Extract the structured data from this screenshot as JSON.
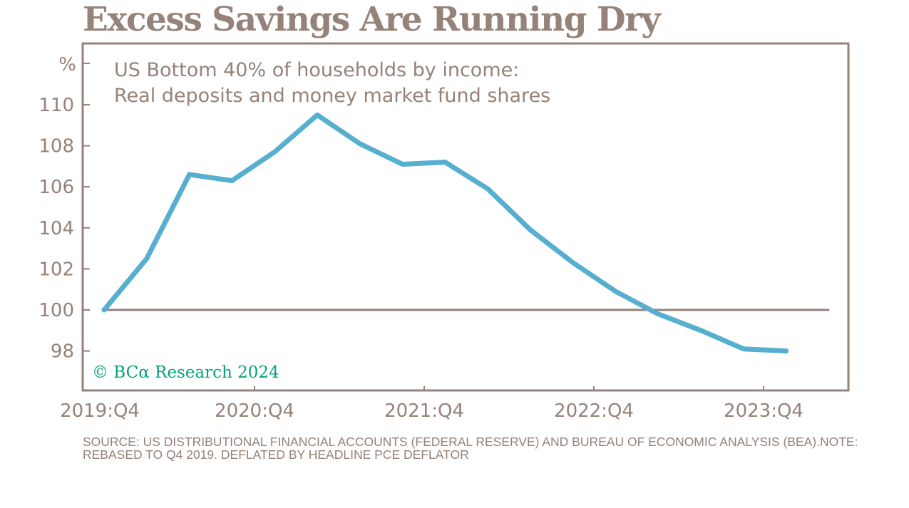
{
  "title": "Excess Savings Are Running Dry",
  "source": "SOURCE: US DISTRIBUTIONAL FINANCIAL ACCOUNTS (FEDERAL RESERVE) AND BUREAU OF ECONOMIC ANALYSIS (BEA).NOTE: REBASED TO Q4 2019. DEFLATED BY HEADLINE PCE DEFLATOR",
  "copyright": "© BCα Research 2024",
  "chart_data": {
    "type": "line",
    "subtitle_lines": [
      "US Bottom 40% of households by income:",
      "Real deposits and money market fund shares"
    ],
    "ylabel": "%",
    "ylim": [
      96,
      111.5
    ],
    "yticks": [
      98,
      100,
      102,
      104,
      106,
      108,
      110
    ],
    "xticks": [
      "2019:Q4",
      "2020:Q4",
      "2021:Q4",
      "2022:Q4",
      "2023:Q4"
    ],
    "reference_line": 100,
    "grid": false,
    "colors": {
      "series": "#57afd0",
      "axis": "#958279",
      "copyright": "#00a27a"
    },
    "x": [
      "2019:Q4",
      "2020:Q1",
      "2020:Q2",
      "2020:Q3",
      "2020:Q4",
      "2021:Q1",
      "2021:Q2",
      "2021:Q3",
      "2021:Q4",
      "2022:Q1",
      "2022:Q2",
      "2022:Q3",
      "2022:Q4",
      "2023:Q1",
      "2023:Q2",
      "2023:Q3",
      "2023:Q4"
    ],
    "values": [
      100.0,
      102.5,
      106.6,
      106.3,
      107.7,
      109.5,
      108.1,
      107.1,
      107.2,
      105.9,
      103.9,
      102.3,
      100.9,
      99.8,
      99.0,
      98.1,
      98.0
    ]
  }
}
